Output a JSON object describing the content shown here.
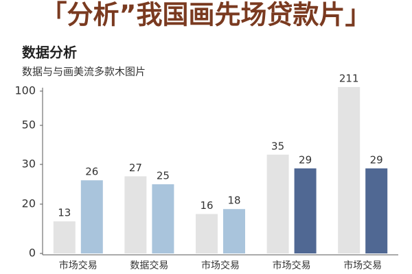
{
  "headline": "「分析”我国画先场贷款片」",
  "chart_data": {
    "type": "bar",
    "title": "数据分析",
    "subtitle": "数据与与画美流多款木图片",
    "categories": [
      "市场交易",
      "数据交易",
      "市场交易",
      "市场交易",
      "市场交易"
    ],
    "series": [
      {
        "colors": [
          "#e3e3e3",
          "#e3e3e3",
          "#e3e3e3",
          "#e3e3e3",
          "#e3e3e3"
        ],
        "values": [
          13,
          27,
          16,
          35,
          211
        ]
      },
      {
        "colors": [
          "#a9c4dc",
          "#a9c4dc",
          "#a9c4dc",
          "#506893",
          "#506893"
        ],
        "values": [
          26,
          25,
          18,
          29,
          29
        ]
      }
    ],
    "ylim": [
      0,
      250
    ],
    "yticks": [
      0,
      20,
      30,
      50,
      100
    ]
  }
}
